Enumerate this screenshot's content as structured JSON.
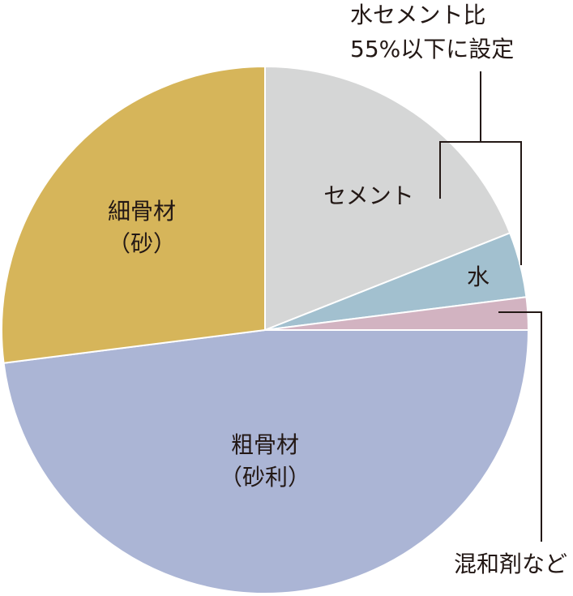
{
  "chart_data": {
    "type": "pie",
    "categories": [
      [
        "セメント"
      ],
      [
        "水"
      ],
      [
        "混和剤など"
      ],
      [
        "粗骨材",
        "（砂利）"
      ],
      [
        "細骨材",
        "（砂）"
      ]
    ],
    "values": [
      19,
      4,
      2,
      48,
      27
    ],
    "colors": [
      "#d5d6d6",
      "#a2c0cf",
      "#d2b3c1",
      "#abb5d5",
      "#d6b55a"
    ],
    "annotation": [
      "水セメント比",
      "55%以下に設定"
    ]
  }
}
